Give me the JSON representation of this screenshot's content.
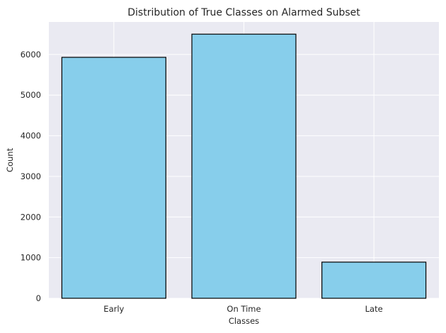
{
  "chart_data": {
    "type": "bar",
    "title": "Distribution of True Classes on Alarmed Subset",
    "xlabel": "Classes",
    "ylabel": "Count",
    "categories": [
      "Early",
      "On Time",
      "Late"
    ],
    "values": [
      5930,
      6500,
      890
    ],
    "ylim": [
      0,
      6800
    ],
    "yticks": [
      0,
      1000,
      2000,
      3000,
      4000,
      5000,
      6000
    ],
    "grid": true,
    "colors": {
      "bar_fill": "#87ceeb",
      "bar_edge": "#000000",
      "plot_background": "#eaeaf2",
      "grid": "#ffffff",
      "text": "#262626"
    }
  }
}
